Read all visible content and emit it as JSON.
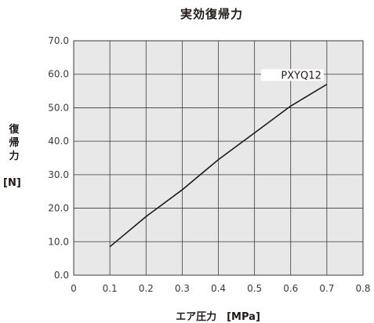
{
  "chart_data": {
    "type": "line",
    "title": "実効復帰力",
    "xlabel": "エア圧力　[MPa]",
    "ylabel": "復帰力",
    "ylabel_unit": "[N]",
    "x_ticks": [
      "0",
      "0.1",
      "0.2",
      "0.3",
      "0.4",
      "0.5",
      "0.6",
      "0.7",
      "0.8"
    ],
    "y_ticks": [
      "0.0",
      "10.0",
      "20.0",
      "30.0",
      "40.0",
      "50.0",
      "60.0",
      "70.0"
    ],
    "xlim": [
      0,
      0.8
    ],
    "ylim": [
      0,
      70
    ],
    "grid": true,
    "series": [
      {
        "name": "PXYQ12",
        "x": [
          0.1,
          0.2,
          0.3,
          0.4,
          0.5,
          0.6,
          0.7
        ],
        "y": [
          8.5,
          17.5,
          25.5,
          34.5,
          42.5,
          50.5,
          57
        ]
      }
    ],
    "colors": {
      "plot_background": "#e8e8e8",
      "line": "#231815",
      "grid": "#3a3a3a"
    }
  }
}
